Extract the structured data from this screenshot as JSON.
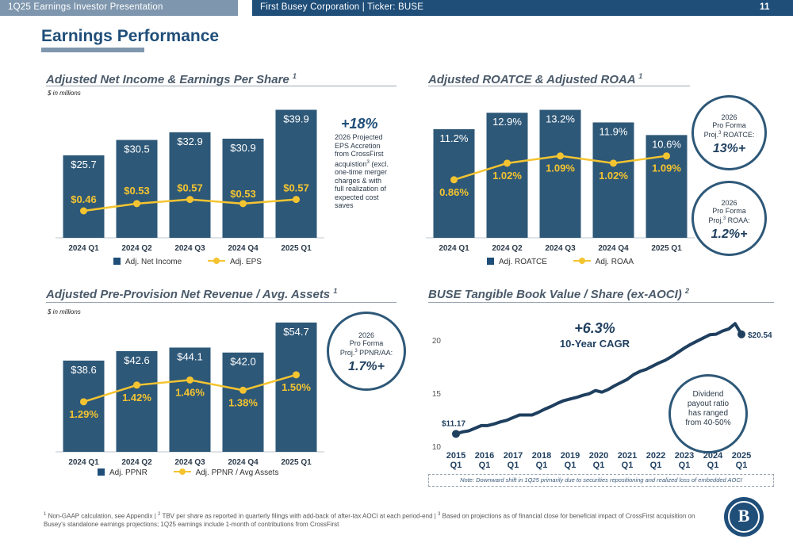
{
  "header": {
    "left_title": "1Q25 Earnings Investor Presentation",
    "center_title": "First Busey Corporation  |  Ticker: BUSE",
    "page_number": "11"
  },
  "page_title": "Earnings Performance",
  "sections": {
    "net_income": {
      "title": "Adjusted Net Income & Earnings Per Share",
      "footnote_ref": "1",
      "unit_note": "$ in millions"
    },
    "roatce": {
      "title": "Adjusted ROATCE & Adjusted ROAA",
      "footnote_ref": "1"
    },
    "ppnr": {
      "title": "Adjusted Pre-Provision Net Revenue / Avg. Assets",
      "footnote_ref": "1",
      "unit_note": "$ in millions"
    },
    "tbv": {
      "title": "BUSE Tangible Book Value / Share (ex-AOCI)",
      "footnote_ref": "2"
    }
  },
  "callouts": {
    "eps_accretion_value": "+18%",
    "eps_accretion_text_a": "2026 Projected",
    "eps_accretion_text_b": "EPS Accretion",
    "eps_accretion_text_c": "from CrossFirst",
    "eps_accretion_text_d": "acquistion",
    "eps_accretion_sup": "3",
    "eps_accretion_text_e": " (excl.",
    "eps_accretion_text_f": "one-time merger",
    "eps_accretion_text_g": "charges & with",
    "eps_accretion_text_h": "full realization of",
    "eps_accretion_text_i": "expected cost",
    "eps_accretion_text_j": "saves",
    "roatce_circle": {
      "year": "2026",
      "line1": "Pro Forma",
      "line2a": "Proj.",
      "sup": "3",
      "line2b": " ROATCE:",
      "value": "13%+"
    },
    "roaa_circle": {
      "year": "2026",
      "line1": "Pro Forma",
      "line2a": "Proj.",
      "sup": "3",
      "line2b": " ROAA:",
      "value": "1.2%+"
    },
    "ppnr_circle": {
      "year": "2026",
      "line1": "Pro Forma",
      "line2a": "Proj.",
      "sup": "3",
      "line2b": " PPNR/AA:",
      "value": "1.7%+"
    },
    "dividend_circle": {
      "line1": "Dividend",
      "line2": "payout ratio",
      "line3": "has ranged",
      "line4": "from 40-50%"
    }
  },
  "legends": {
    "net_income": {
      "bar": "Adj. Net Income",
      "line": "Adj. EPS"
    },
    "roatce": {
      "bar": "Adj. ROATCE",
      "line": "Adj. ROAA"
    },
    "ppnr": {
      "bar": "Adj. PPNR",
      "line": "Adj. PPNR / Avg Assets"
    }
  },
  "tbv_note": "Note: Downward shift in 1Q25 primarily due to securities repositioning and realized loss of embedded AOCI",
  "footer": {
    "sup1": "1",
    "text1": " Non-GAAP calculation, see Appendix | ",
    "sup2": "2",
    "text2": " TBV per share as reported in quarterly filings with add-back of after-tax AOCI at each period-end | ",
    "sup3": "3",
    "text3": " Based on projections as of financial close for beneficial impact of CrossFirst acquisition on Busey's standalone earnings projections; 1Q25 earnings include 1-month of contributions from CrossFirst"
  },
  "logo_glyph": "B",
  "colors": {
    "bar": "#2e5878",
    "line": "#f4c430",
    "tbv_line": "#1f3f5f",
    "accent": "#1f4e79"
  },
  "chart_data": [
    {
      "id": "net_income",
      "type": "bar+line",
      "categories": [
        "2024 Q1",
        "2024 Q2",
        "2024 Q3",
        "2024 Q4",
        "2025 Q1"
      ],
      "series": [
        {
          "name": "Adj. Net Income",
          "type": "bar",
          "values": [
            25.7,
            30.5,
            32.9,
            30.9,
            39.9
          ],
          "labels": [
            "$25.7",
            "$30.5",
            "$32.9",
            "$30.9",
            "$39.9"
          ]
        },
        {
          "name": "Adj. EPS",
          "type": "line",
          "values": [
            0.46,
            0.53,
            0.57,
            0.53,
            0.57
          ],
          "labels": [
            "$0.46",
            "$0.53",
            "$0.57",
            "$0.53",
            "$0.57"
          ]
        }
      ],
      "bar_ylim": [
        0,
        42
      ],
      "line_ylim": [
        0.2,
        1.5
      ]
    },
    {
      "id": "roatce",
      "type": "bar+line",
      "categories": [
        "2024 Q1",
        "2024 Q2",
        "2024 Q3",
        "2024 Q4",
        "2025 Q1"
      ],
      "series": [
        {
          "name": "Adj. ROATCE",
          "type": "bar",
          "values": [
            11.2,
            12.9,
            13.2,
            11.9,
            10.6
          ],
          "labels": [
            "11.2%",
            "12.9%",
            "13.2%",
            "11.9%",
            "10.6%"
          ]
        },
        {
          "name": "Adj. ROAA",
          "type": "line",
          "values": [
            0.86,
            1.02,
            1.09,
            1.02,
            1.09
          ],
          "labels": [
            "0.86%",
            "1.02%",
            "1.09%",
            "1.02%",
            "1.09%"
          ]
        }
      ],
      "bar_ylim": [
        0,
        13.9
      ],
      "line_ylim": [
        0.3,
        1.6
      ]
    },
    {
      "id": "ppnr",
      "type": "bar+line",
      "categories": [
        "2024 Q1",
        "2024 Q2",
        "2024 Q3",
        "2024 Q4",
        "2025 Q1"
      ],
      "series": [
        {
          "name": "Adj. PPNR",
          "type": "bar",
          "values": [
            38.6,
            42.6,
            44.1,
            42.0,
            54.7
          ],
          "labels": [
            "$38.6",
            "$42.6",
            "$44.1",
            "$42.0",
            "$54.7"
          ]
        },
        {
          "name": "Adj. PPNR / Avg Assets",
          "type": "line",
          "values": [
            1.29,
            1.42,
            1.46,
            1.38,
            1.5
          ],
          "labels": [
            "1.29%",
            "1.42%",
            "1.46%",
            "1.38%",
            "1.50%"
          ]
        }
      ],
      "bar_ylim": [
        0,
        57
      ],
      "line_ylim": [
        0.9,
        1.95
      ]
    },
    {
      "id": "tbv",
      "type": "line",
      "x_ticks": [
        {
          "year": "2015",
          "q": "Q1"
        },
        {
          "year": "2016",
          "q": "Q1"
        },
        {
          "year": "2017",
          "q": "Q1"
        },
        {
          "year": "2018",
          "q": "Q1"
        },
        {
          "year": "2019",
          "q": "Q1"
        },
        {
          "year": "2020",
          "q": "Q1"
        },
        {
          "year": "2021",
          "q": "Q1"
        },
        {
          "year": "2022",
          "q": "Q1"
        },
        {
          "year": "2023",
          "q": "Q1"
        },
        {
          "year": "2024",
          "q": "Q1"
        },
        {
          "year": "2025",
          "q": "Q1"
        }
      ],
      "y_ticks": [
        "10",
        "15",
        "20"
      ],
      "ylim": [
        10,
        20
      ],
      "values": [
        11.17,
        11.35,
        11.45,
        11.7,
        11.95,
        11.95,
        12.1,
        12.3,
        12.45,
        12.7,
        12.95,
        12.95,
        12.95,
        13.2,
        13.5,
        13.75,
        14.05,
        14.3,
        14.45,
        14.6,
        14.8,
        14.95,
        15.25,
        15.1,
        15.35,
        15.7,
        16.0,
        16.3,
        16.75,
        17.05,
        17.25,
        17.55,
        17.85,
        18.1,
        18.45,
        18.85,
        19.25,
        19.6,
        19.9,
        20.2,
        20.5,
        20.55,
        20.85,
        21.05,
        21.55,
        20.54
      ],
      "start_label": "$11.17",
      "end_label": "$20.54",
      "cagr_value": "+6.3%",
      "cagr_label": "10-Year CAGR"
    }
  ]
}
